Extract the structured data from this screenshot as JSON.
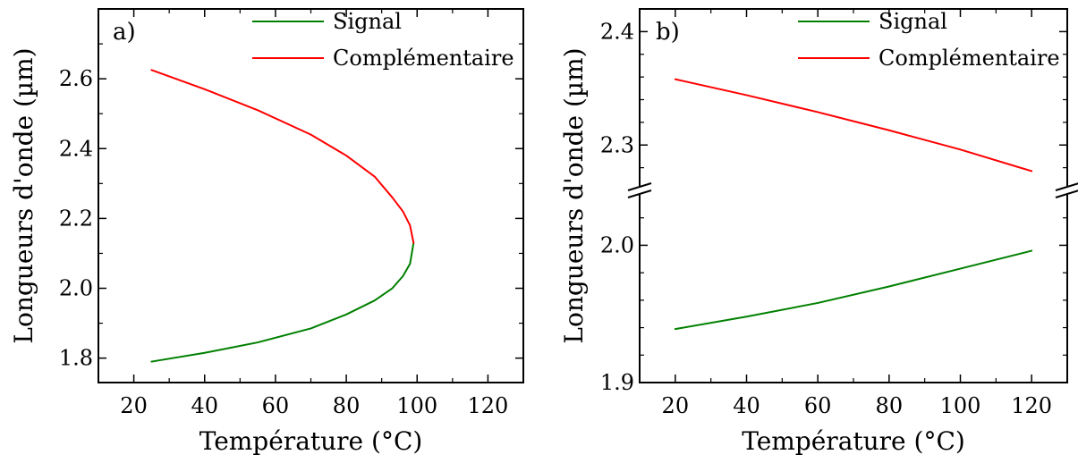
{
  "chart_data": [
    {
      "type": "line",
      "panel_label": "a)",
      "xlabel": "Température (°C)",
      "ylabel": "Longueurs d'onde (µm)",
      "xlim": [
        10,
        130
      ],
      "ylim": [
        1.73,
        2.8
      ],
      "x_ticks": [
        20,
        40,
        60,
        80,
        100,
        120
      ],
      "x_tick_labels": [
        "20",
        "40",
        "60",
        "80",
        "100",
        "120"
      ],
      "y_ticks": [
        1.8,
        2.0,
        2.2,
        2.4,
        2.6
      ],
      "y_tick_labels": [
        "1.8",
        "2.0",
        "2.2",
        "2.4",
        "2.6"
      ],
      "legend_position": "top-right",
      "grid": false,
      "series": [
        {
          "name": "Signal",
          "color": "#008000",
          "x": [
            25,
            40,
            55,
            70,
            80,
            88,
            93,
            96,
            98,
            99
          ],
          "y": [
            1.79,
            1.815,
            1.845,
            1.885,
            1.925,
            1.965,
            2.0,
            2.035,
            2.07,
            2.13
          ]
        },
        {
          "name": "Complémentaire",
          "color": "#ff0000",
          "x": [
            25,
            40,
            55,
            70,
            80,
            88,
            93,
            96,
            98,
            99
          ],
          "y": [
            2.625,
            2.57,
            2.51,
            2.44,
            2.38,
            2.32,
            2.26,
            2.22,
            2.18,
            2.13
          ]
        }
      ]
    },
    {
      "type": "line",
      "panel_label": "b)",
      "xlabel": "Température (°C)",
      "ylabel": "Longueurs d'onde (µm)",
      "xlim": [
        10,
        130
      ],
      "broken_axis": true,
      "ylim_lower": [
        1.9,
        2.04
      ],
      "ylim_upper": [
        2.26,
        2.42
      ],
      "x_ticks": [
        20,
        40,
        60,
        80,
        100,
        120
      ],
      "x_tick_labels": [
        "20",
        "40",
        "60",
        "80",
        "100",
        "120"
      ],
      "y_ticks_lower": [
        1.9,
        2.0
      ],
      "y_tick_labels_lower": [
        "1.9",
        "2.0"
      ],
      "y_ticks_upper": [
        2.3,
        2.4
      ],
      "y_tick_labels_upper": [
        "2.3",
        "2.4"
      ],
      "legend_position": "top-right",
      "grid": false,
      "series": [
        {
          "name": "Signal",
          "color": "#008000",
          "x": [
            20,
            40,
            60,
            80,
            100,
            120
          ],
          "y": [
            1.939,
            1.948,
            1.958,
            1.97,
            1.983,
            1.996
          ]
        },
        {
          "name": "Complémentaire",
          "color": "#ff0000",
          "x": [
            20,
            40,
            60,
            80,
            100,
            120
          ],
          "y": [
            2.358,
            2.344,
            2.329,
            2.313,
            2.296,
            2.277
          ]
        }
      ]
    }
  ]
}
